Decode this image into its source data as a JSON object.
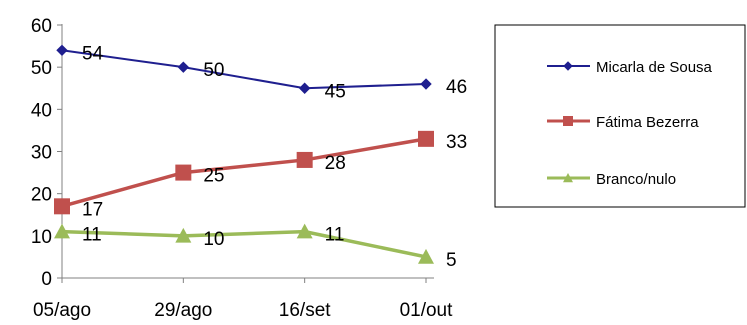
{
  "chart_data": {
    "type": "line",
    "categories": [
      "05/ago",
      "29/ago",
      "16/set",
      "01/out"
    ],
    "series": [
      {
        "name": "Micarla de Sousa",
        "values": [
          54,
          50,
          45,
          46
        ],
        "color": "#1f1f8f",
        "marker": "diamond"
      },
      {
        "name": "Fátima Bezerra",
        "values": [
          17,
          25,
          28,
          33
        ],
        "color": "#c0504d",
        "marker": "square"
      },
      {
        "name": "Branco/nulo",
        "values": [
          11,
          10,
          11,
          5
        ],
        "color": "#9bbb59",
        "marker": "triangle"
      }
    ],
    "y_ticks": [
      "0",
      "10",
      "20",
      "30",
      "40",
      "50",
      "60"
    ],
    "ylim": [
      0,
      60
    ],
    "grid": false,
    "legend_position": "right",
    "data_labels": true
  }
}
